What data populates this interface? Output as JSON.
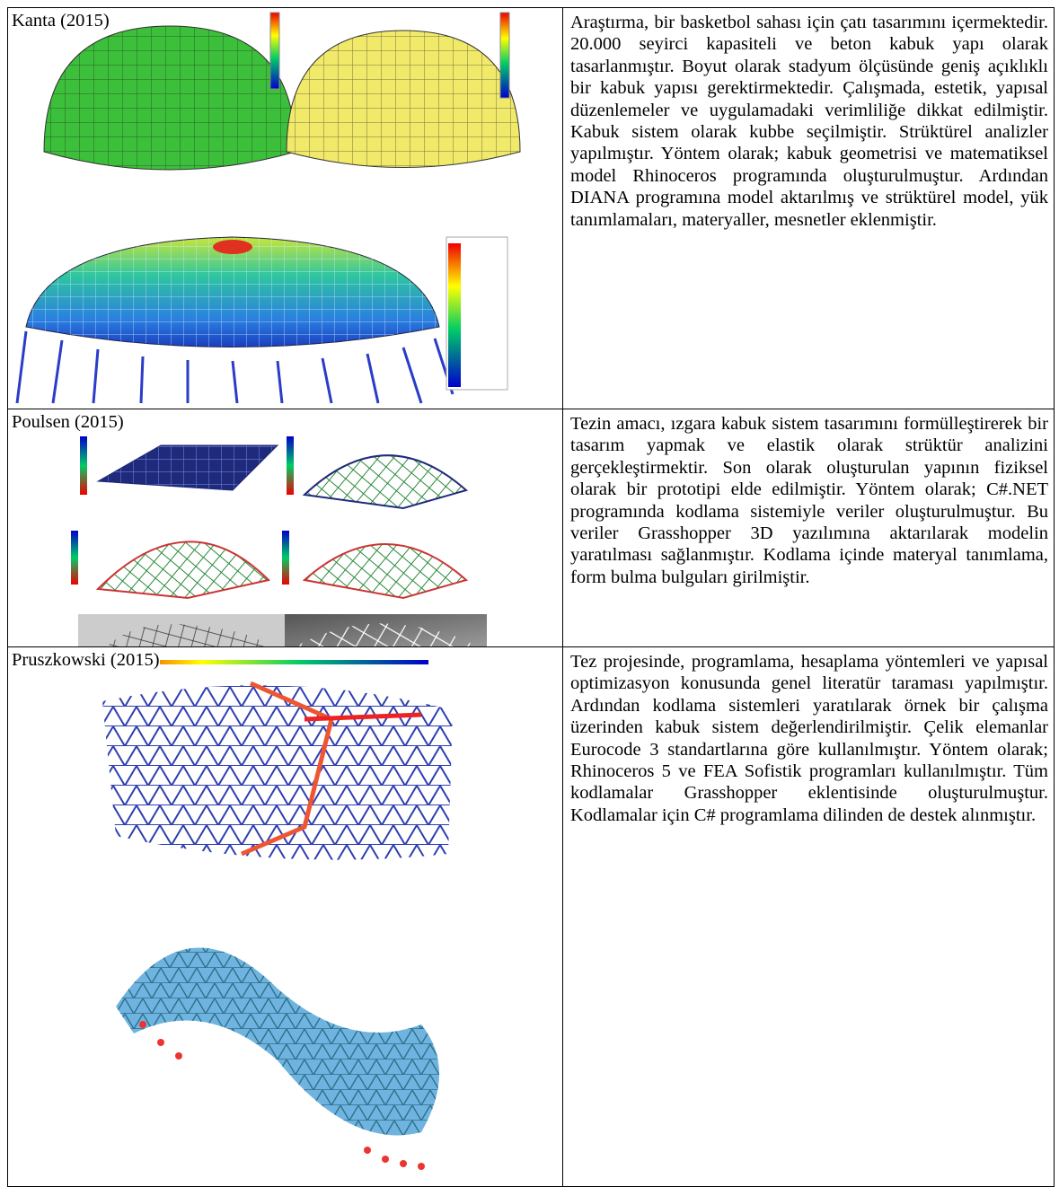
{
  "table": {
    "rows": [
      {
        "author": "Kanta (2015)",
        "text": "Araştırma, bir basketbol sahası için çatı tasarımını içermektedir. 20.000 seyirci kapasiteli ve beton kabuk yapı olarak tasarlanmıştır. Boyut olarak stadyum ölçüsünde geniş açıklıklı bir kabuk yapısı gerektirmektedir. Çalışmada, estetik, yapısal düzenlemeler ve uygulamadaki verimliliğe dikkat edilmiştir. Kabuk sistem olarak kubbe seçilmiştir. Strüktürel analizler yapılmıştır. Yöntem olarak; kabuk geometrisi ve matematiksel model Rhinoceros programında oluşturulmuştur. Ardından DIANA programına model aktarılmış ve strüktürel model, yük tanımlamaları, materyaller, mesnetler eklenmiştir."
      },
      {
        "author": "Poulsen (2015)",
        "text": "Tezin amacı, ızgara kabuk sistem tasarımını formülleştirerek bir tasarım yapmak ve elastik olarak strüktür analizini gerçekleştirmektir. Son olarak oluşturulan yapının fiziksel olarak bir prototipi elde edilmiştir. Yöntem olarak; C#.NET programında kodlama sistemiyle veriler oluşturulmuştur. Bu veriler Grasshopper 3D yazılımına aktarılarak modelin yaratılması sağlanmıştır. Kodlama içinde materyal tanımlama, form bulma bulguları girilmiştir."
      },
      {
        "author": "Pruszkowski (2015)",
        "text": "Tez projesinde, programlama, hesaplama yöntemleri ve yapısal optimizasyon konusunda genel literatür taraması yapılmıştır. Ardından kodlama sistemleri yaratılarak örnek bir çalışma üzerinden kabuk sistem değerlendirilmiştir. Çelik elemanlar Eurocode 3 standartlarına göre kullanılmıştır. Yöntem olarak; Rhinoceros 5 ve FEA Sofistik programları kullanılmıştır. Tüm kodlamalar Grasshopper eklentisinde oluşturulmuştur. Kodlamalar için C# programlama dilinden de destek alınmıştır."
      }
    ]
  }
}
